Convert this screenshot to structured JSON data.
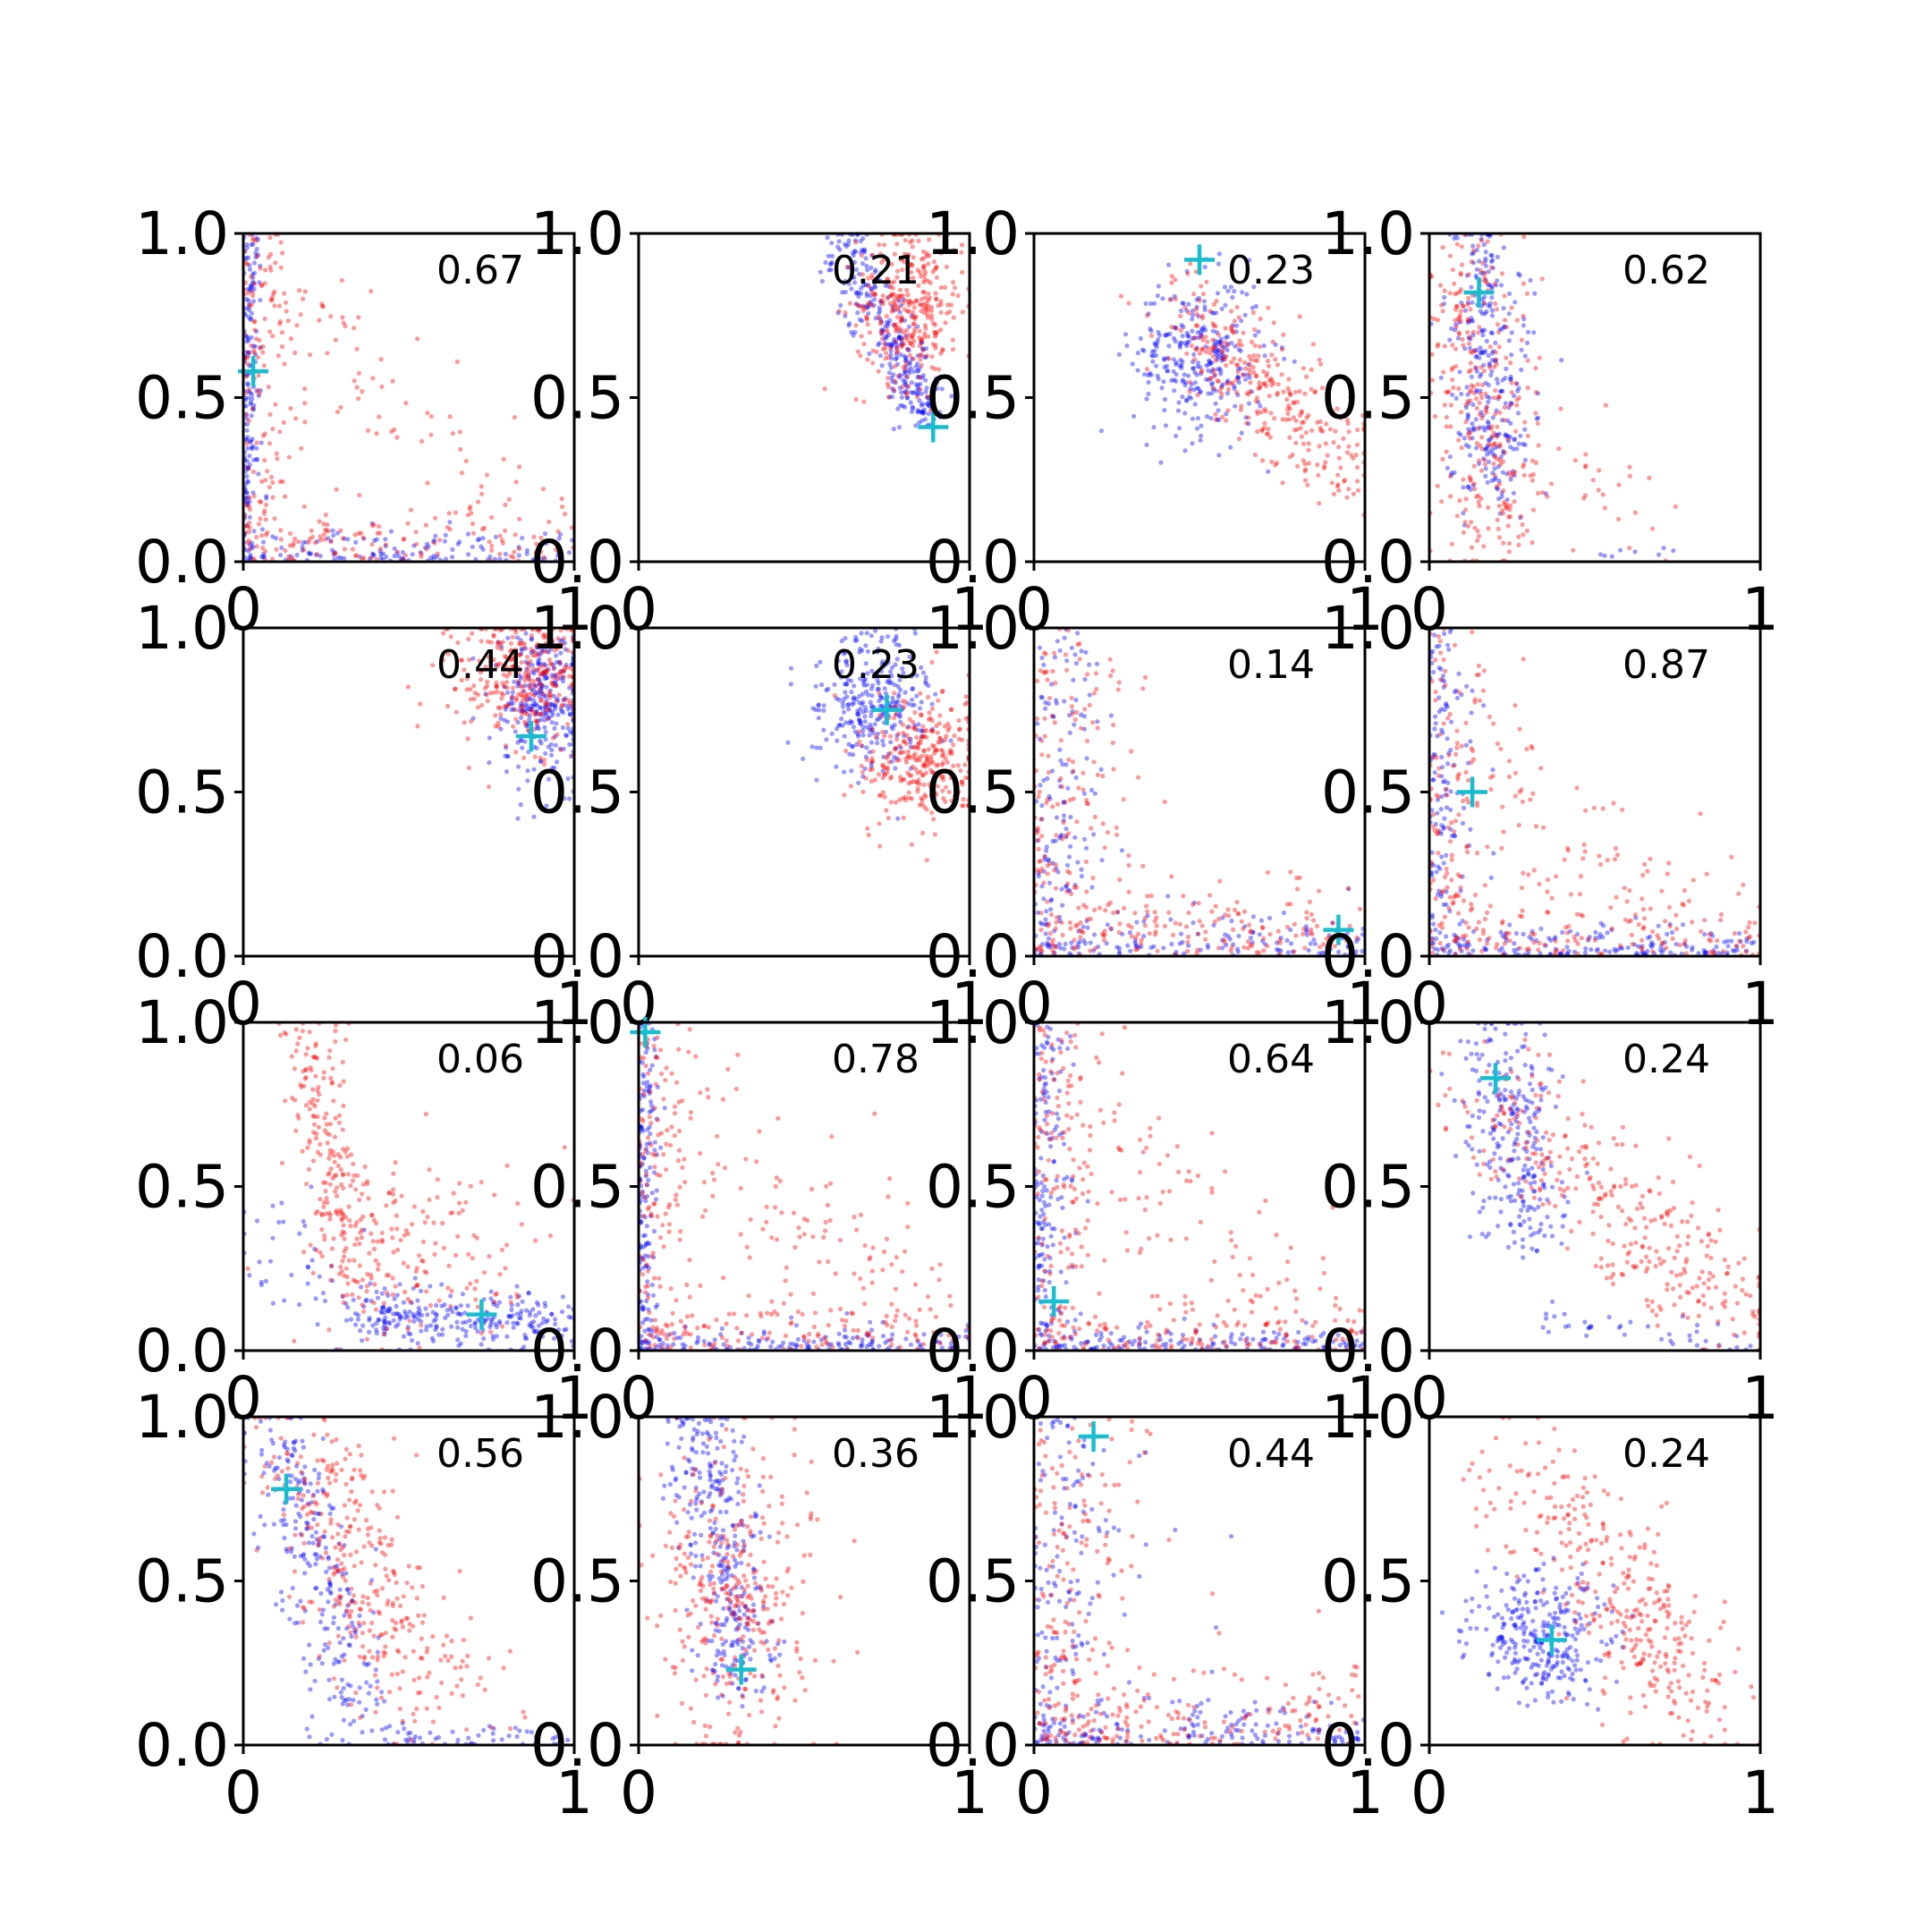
{
  "colors": {
    "series_a": "#0000ff",
    "series_b": "#ff0000",
    "marker": "#17becf",
    "axis": "#000000"
  },
  "chart_data": {
    "type": "scatter",
    "layout": "4x4 grid of subplots",
    "xlim": [
      0,
      1
    ],
    "ylim": [
      0,
      1
    ],
    "xticks": [
      "0",
      "1"
    ],
    "yticks": [
      "0.0",
      "0.5",
      "1.0"
    ],
    "series": [
      {
        "color": "blue",
        "point_alpha": 0.4
      },
      {
        "color": "red",
        "point_alpha": 0.4
      }
    ],
    "marker_style": "plus",
    "panels": [
      {
        "label": "0.67",
        "marker": [
          0.03,
          0.58
        ],
        "series": [
          {
            "clusters": [
              {
                "shape": "L",
                "v": 0.03,
                "h": 0.05,
                "n": 300
              }
            ]
          },
          {
            "clusters": [
              {
                "shape": "L",
                "v": 0.08,
                "h": 0.08,
                "n": 260
              },
              {
                "shape": "band",
                "from": [
                  0.1,
                  0.9
                ],
                "to": [
                  0.9,
                  0.05
                ],
                "sd": 0.1,
                "n": 80
              }
            ]
          }
        ]
      },
      {
        "label": "0.21",
        "marker": [
          0.89,
          0.41
        ],
        "series": [
          {
            "clusters": [
              {
                "shape": "band",
                "from": [
                  0.62,
                  0.98
                ],
                "to": [
                  0.88,
                  0.42
                ],
                "sd": 0.04,
                "n": 300
              }
            ]
          },
          {
            "clusters": [
              {
                "shape": "blob",
                "center": [
                  0.82,
                  0.78
                ],
                "sd": [
                  0.08,
                  0.12
                ],
                "n": 330
              }
            ]
          }
        ]
      },
      {
        "label": "0.23",
        "marker": [
          0.5,
          0.92
        ],
        "series": [
          {
            "clusters": [
              {
                "shape": "blob",
                "center": [
                  0.5,
                  0.62
                ],
                "sd": [
                  0.1,
                  0.12
                ],
                "n": 300
              }
            ]
          },
          {
            "clusters": [
              {
                "shape": "band",
                "from": [
                  0.45,
                  0.75
                ],
                "to": [
                  0.95,
                  0.3
                ],
                "sd": 0.08,
                "n": 320
              }
            ]
          }
        ]
      },
      {
        "label": "0.62",
        "marker": [
          0.15,
          0.82
        ],
        "series": [
          {
            "clusters": [
              {
                "shape": "band",
                "from": [
                  0.15,
                  0.98
                ],
                "to": [
                  0.2,
                  0.2
                ],
                "sd": 0.06,
                "n": 300
              },
              {
                "shape": "band",
                "from": [
                  0.4,
                  0.02
                ],
                "to": [
                  0.85,
                  0.04
                ],
                "sd": 0.01,
                "n": 8
              }
            ]
          },
          {
            "clusters": [
              {
                "shape": "band",
                "from": [
                  0.12,
                  0.95
                ],
                "to": [
                  0.2,
                  0.05
                ],
                "sd": 0.08,
                "n": 300
              },
              {
                "shape": "band",
                "from": [
                  0.3,
                  0.3
                ],
                "to": [
                  0.65,
                  0.1
                ],
                "sd": 0.08,
                "n": 30
              }
            ]
          }
        ]
      },
      {
        "label": "0.44",
        "marker": [
          0.87,
          0.67
        ],
        "series": [
          {
            "clusters": [
              {
                "shape": "blob",
                "center": [
                  0.9,
                  0.78
                ],
                "sd": [
                  0.06,
                  0.12
                ],
                "n": 300
              }
            ]
          },
          {
            "clusters": [
              {
                "shape": "blob",
                "center": [
                  0.85,
                  0.85
                ],
                "sd": [
                  0.1,
                  0.1
                ],
                "n": 320
              }
            ]
          }
        ]
      },
      {
        "label": "0.23",
        "marker": [
          0.75,
          0.75
        ],
        "series": [
          {
            "clusters": [
              {
                "shape": "blob",
                "center": [
                  0.7,
                  0.78
                ],
                "sd": [
                  0.09,
                  0.1
                ],
                "n": 300
              }
            ]
          },
          {
            "clusters": [
              {
                "shape": "blob",
                "center": [
                  0.85,
                  0.6
                ],
                "sd": [
                  0.09,
                  0.1
                ],
                "n": 300
              }
            ]
          }
        ]
      },
      {
        "label": "0.14",
        "marker": [
          0.92,
          0.08
        ],
        "series": [
          {
            "clusters": [
              {
                "shape": "L",
                "v": 0.1,
                "h": 0.07,
                "n": 280
              }
            ]
          },
          {
            "clusters": [
              {
                "shape": "L",
                "v": 0.15,
                "h": 0.12,
                "n": 320
              }
            ]
          }
        ]
      },
      {
        "label": "0.87",
        "marker": [
          0.13,
          0.5
        ],
        "series": [
          {
            "clusters": [
              {
                "shape": "L",
                "v": 0.06,
                "h": 0.04,
                "n": 300
              }
            ]
          },
          {
            "clusters": [
              {
                "shape": "L",
                "v": 0.1,
                "h": 0.1,
                "n": 270
              },
              {
                "shape": "band",
                "from": [
                  0.15,
                  0.6
                ],
                "to": [
                  0.85,
                  0.1
                ],
                "sd": 0.1,
                "n": 70
              }
            ]
          }
        ]
      },
      {
        "label": "0.06",
        "marker": [
          0.72,
          0.11
        ],
        "series": [
          {
            "clusters": [
              {
                "shape": "band",
                "from": [
                  0.35,
                  0.12
                ],
                "to": [
                  0.98,
                  0.08
                ],
                "sd": 0.04,
                "n": 260
              },
              {
                "shape": "band",
                "from": [
                  0.05,
                  0.45
                ],
                "to": [
                  0.3,
                  0.1
                ],
                "sd": 0.1,
                "n": 40
              }
            ]
          },
          {
            "clusters": [
              {
                "shape": "band",
                "from": [
                  0.2,
                  0.98
                ],
                "to": [
                  0.35,
                  0.15
                ],
                "sd": 0.05,
                "n": 220
              },
              {
                "shape": "blob",
                "center": [
                  0.55,
                  0.3
                ],
                "sd": [
                  0.18,
                  0.15
                ],
                "n": 150
              }
            ]
          }
        ]
      },
      {
        "label": "0.78",
        "marker": [
          0.02,
          0.97
        ],
        "series": [
          {
            "clusters": [
              {
                "shape": "L",
                "v": 0.03,
                "h": 0.03,
                "n": 300
              }
            ]
          },
          {
            "clusters": [
              {
                "shape": "L",
                "v": 0.08,
                "h": 0.08,
                "n": 240
              },
              {
                "shape": "band",
                "from": [
                  0.1,
                  0.7
                ],
                "to": [
                  0.9,
                  0.08
                ],
                "sd": 0.12,
                "n": 110
              }
            ]
          }
        ]
      },
      {
        "label": "0.64",
        "marker": [
          0.06,
          0.15
        ],
        "series": [
          {
            "clusters": [
              {
                "shape": "L",
                "v": 0.05,
                "h": 0.03,
                "n": 300
              }
            ]
          },
          {
            "clusters": [
              {
                "shape": "L",
                "v": 0.12,
                "h": 0.08,
                "n": 260
              },
              {
                "shape": "band",
                "from": [
                  0.15,
                  0.7
                ],
                "to": [
                  0.9,
                  0.1
                ],
                "sd": 0.12,
                "n": 90
              }
            ]
          }
        ]
      },
      {
        "label": "0.24",
        "marker": [
          0.2,
          0.83
        ],
        "series": [
          {
            "clusters": [
              {
                "shape": "band",
                "from": [
                  0.2,
                  0.98
                ],
                "to": [
                  0.3,
                  0.3
                ],
                "sd": 0.07,
                "n": 260
              },
              {
                "shape": "band",
                "from": [
                  0.35,
                  0.1
                ],
                "to": [
                  0.98,
                  0.02
                ],
                "sd": 0.03,
                "n": 40
              }
            ]
          },
          {
            "clusters": [
              {
                "shape": "band",
                "from": [
                  0.15,
                  0.8
                ],
                "to": [
                  0.95,
                  0.1
                ],
                "sd": 0.1,
                "n": 330
              }
            ]
          }
        ]
      },
      {
        "label": "0.56",
        "marker": [
          0.13,
          0.78
        ],
        "series": [
          {
            "clusters": [
              {
                "shape": "band",
                "from": [
                  0.1,
                  0.98
                ],
                "to": [
                  0.35,
                  0.05
                ],
                "sd": 0.06,
                "n": 260
              },
              {
                "shape": "band",
                "from": [
                  0.4,
                  0.03
                ],
                "to": [
                  0.98,
                  0.02
                ],
                "sd": 0.02,
                "n": 50
              }
            ]
          },
          {
            "clusters": [
              {
                "shape": "band",
                "from": [
                  0.15,
                  0.95
                ],
                "to": [
                  0.55,
                  0.1
                ],
                "sd": 0.1,
                "n": 300
              },
              {
                "shape": "band",
                "from": [
                  0.3,
                  0.5
                ],
                "to": [
                  0.8,
                  0.1
                ],
                "sd": 0.08,
                "n": 40
              }
            ]
          }
        ]
      },
      {
        "label": "0.36",
        "marker": [
          0.31,
          0.23
        ],
        "series": [
          {
            "clusters": [
              {
                "shape": "band",
                "from": [
                  0.18,
                  0.98
                ],
                "to": [
                  0.32,
                  0.2
                ],
                "sd": 0.06,
                "n": 320
              }
            ]
          },
          {
            "clusters": [
              {
                "shape": "blob",
                "center": [
                  0.3,
                  0.45
                ],
                "sd": [
                  0.12,
                  0.25
                ],
                "n": 330
              }
            ]
          }
        ]
      },
      {
        "label": "0.44",
        "marker": [
          0.18,
          0.94
        ],
        "series": [
          {
            "clusters": [
              {
                "shape": "L",
                "v": 0.15,
                "h": 0.06,
                "n": 300
              }
            ]
          },
          {
            "clusters": [
              {
                "shape": "L",
                "v": 0.18,
                "h": 0.12,
                "n": 320
              }
            ]
          }
        ]
      },
      {
        "label": "0.24",
        "marker": [
          0.37,
          0.32
        ],
        "series": [
          {
            "clusters": [
              {
                "shape": "blob",
                "center": [
                  0.33,
                  0.33
                ],
                "sd": [
                  0.1,
                  0.1
                ],
                "n": 300
              }
            ]
          },
          {
            "clusters": [
              {
                "shape": "band",
                "from": [
                  0.25,
                  0.85
                ],
                "to": [
                  0.85,
                  0.1
                ],
                "sd": 0.1,
                "n": 340
              }
            ]
          }
        ]
      }
    ]
  }
}
